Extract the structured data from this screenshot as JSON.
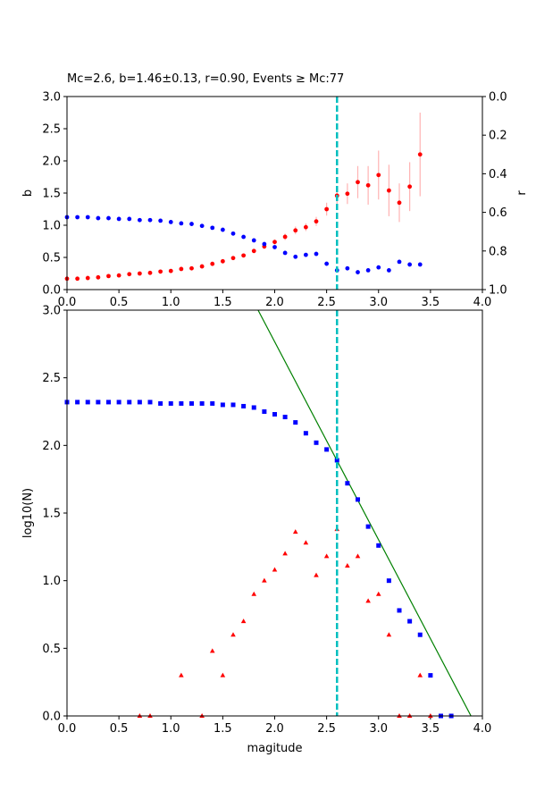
{
  "chart_data": [
    {
      "type": "scatter",
      "title": "Mc=2.6, b=1.46±0.13, r=0.90, Events ≥ Mc:77",
      "ylabel": "b",
      "y2label": "r",
      "xlim": [
        0,
        4
      ],
      "xticks": [
        {
          "value": 0,
          "label": "0.0"
        },
        0.5,
        {
          "value": 1,
          "label": "1.0"
        },
        1.5,
        {
          "value": 2,
          "label": "2.0"
        },
        2.5,
        {
          "value": 3,
          "label": "3.0"
        },
        3.5,
        {
          "value": 4,
          "label": "4.0"
        }
      ],
      "ylim": [
        0,
        3
      ],
      "yticks": [
        {
          "value": 0,
          "label": "0.0"
        },
        0.5,
        {
          "value": 1,
          "label": "1.0"
        },
        1.5,
        {
          "value": 2,
          "label": "2.0"
        },
        2.5,
        {
          "value": 3,
          "label": "3.0"
        }
      ],
      "y2lim": [
        0,
        1
      ],
      "y2_inverted": true,
      "y2ticks": [
        {
          "value": 0,
          "label": "0.0"
        },
        0.2,
        0.4,
        0.6,
        0.8,
        {
          "value": 1,
          "label": "1.0"
        }
      ],
      "vline": 2.6,
      "vline_color": "#00bfbf",
      "series": [
        {
          "marker": "circle",
          "color": "#ff0000",
          "error_color": "#ffb3b3",
          "x": [
            0,
            0.1,
            0.2,
            0.3,
            0.4,
            0.5,
            0.6,
            0.7,
            0.8,
            0.9,
            1.0,
            1.1,
            1.2,
            1.3,
            1.4,
            1.5,
            1.6,
            1.7,
            1.8,
            1.9,
            2.0,
            2.1,
            2.2,
            2.3,
            2.4,
            2.5,
            2.6,
            2.7,
            2.8,
            2.9,
            3.0,
            3.1,
            3.2,
            3.3,
            3.4
          ],
          "values": [
            0.17,
            0.17,
            0.18,
            0.19,
            0.21,
            0.22,
            0.24,
            0.25,
            0.26,
            0.28,
            0.29,
            0.32,
            0.33,
            0.36,
            0.4,
            0.44,
            0.49,
            0.53,
            0.6,
            0.67,
            0.74,
            0.82,
            0.92,
            0.97,
            1.06,
            1.25,
            1.46,
            1.49,
            1.67,
            1.62,
            1.78,
            1.54,
            1.35,
            1.6,
            2.1
          ],
          "errors": [
            0.01,
            0.01,
            0.01,
            0.01,
            0.01,
            0.01,
            0.01,
            0.01,
            0.01,
            0.01,
            0.01,
            0.02,
            0.02,
            0.02,
            0.02,
            0.02,
            0.03,
            0.03,
            0.03,
            0.04,
            0.04,
            0.05,
            0.06,
            0.06,
            0.07,
            0.1,
            0.13,
            0.16,
            0.25,
            0.3,
            0.38,
            0.4,
            0.3,
            0.38,
            0.65
          ]
        },
        {
          "marker": "circle",
          "color": "#0000ff",
          "axis": "y2",
          "x": [
            0,
            0.1,
            0.2,
            0.3,
            0.4,
            0.5,
            0.6,
            0.7,
            0.8,
            0.9,
            1.0,
            1.1,
            1.2,
            1.3,
            1.4,
            1.5,
            1.6,
            1.7,
            1.8,
            1.9,
            2.0,
            2.1,
            2.2,
            2.3,
            2.4,
            2.5,
            2.6,
            2.7,
            2.8,
            2.9,
            3.0,
            3.1,
            3.2,
            3.3,
            3.4
          ],
          "values": [
            0.625,
            0.625,
            0.625,
            0.63,
            0.63,
            0.634,
            0.634,
            0.64,
            0.64,
            0.643,
            0.65,
            0.657,
            0.66,
            0.67,
            0.68,
            0.69,
            0.71,
            0.727,
            0.745,
            0.764,
            0.78,
            0.81,
            0.83,
            0.82,
            0.815,
            0.866,
            0.9,
            0.89,
            0.91,
            0.9,
            0.885,
            0.9,
            0.856,
            0.87,
            0.87
          ]
        }
      ]
    },
    {
      "type": "scatter",
      "xlabel": "magitude",
      "ylabel": "log10(N)",
      "xlim": [
        0,
        4
      ],
      "xticks": [
        {
          "value": 0,
          "label": "0.0"
        },
        0.5,
        {
          "value": 1,
          "label": "1.0"
        },
        1.5,
        {
          "value": 2,
          "label": "2.0"
        },
        2.5,
        {
          "value": 3,
          "label": "3.0"
        },
        3.5,
        {
          "value": 4,
          "label": "4.0"
        }
      ],
      "ylim": [
        0,
        3
      ],
      "yticks": [
        {
          "value": 0,
          "label": "0.0"
        },
        0.5,
        {
          "value": 1,
          "label": "1.0"
        },
        1.5,
        {
          "value": 2,
          "label": "2.0"
        },
        2.5,
        {
          "value": 3,
          "label": "3.0"
        }
      ],
      "vline": 2.6,
      "vline_color": "#00bfbf",
      "series": [
        {
          "marker": "square",
          "color": "#0000ff",
          "x": [
            0,
            0.1,
            0.2,
            0.3,
            0.4,
            0.5,
            0.6,
            0.7,
            0.8,
            0.9,
            1.0,
            1.1,
            1.2,
            1.3,
            1.4,
            1.5,
            1.6,
            1.7,
            1.8,
            1.9,
            2.0,
            2.1,
            2.2,
            2.3,
            2.4,
            2.5,
            2.6,
            2.7,
            2.8,
            2.9,
            3.0,
            3.1,
            3.2,
            3.3,
            3.4,
            3.5,
            3.6,
            3.7
          ],
          "values": [
            2.32,
            2.32,
            2.32,
            2.32,
            2.32,
            2.32,
            2.32,
            2.32,
            2.32,
            2.31,
            2.31,
            2.31,
            2.31,
            2.31,
            2.31,
            2.3,
            2.3,
            2.29,
            2.28,
            2.25,
            2.23,
            2.21,
            2.17,
            2.09,
            2.02,
            1.97,
            1.89,
            1.72,
            1.6,
            1.4,
            1.26,
            1.0,
            0.78,
            0.7,
            0.6,
            0.3,
            0,
            0
          ]
        },
        {
          "marker": "triangle",
          "color": "#ff0000",
          "x": [
            0.7,
            0.8,
            1.1,
            1.3,
            1.4,
            1.5,
            1.6,
            1.7,
            1.8,
            1.9,
            2.0,
            2.1,
            2.2,
            2.3,
            2.4,
            2.5,
            2.6,
            2.7,
            2.8,
            2.9,
            3.0,
            3.1,
            3.2,
            3.3,
            3.4,
            3.5
          ],
          "values": [
            0,
            0,
            0.3,
            0,
            0.48,
            0.3,
            0.6,
            0.7,
            0.9,
            1.0,
            1.08,
            1.2,
            1.36,
            1.28,
            1.04,
            1.18,
            1.38,
            1.11,
            1.18,
            0.85,
            0.9,
            0.6,
            0,
            0,
            0.3,
            0
          ]
        },
        {
          "marker": "line",
          "color": "#008000",
          "x": [
            1.84,
            3.89
          ],
          "values": [
            3.0,
            0.0
          ]
        }
      ]
    }
  ]
}
